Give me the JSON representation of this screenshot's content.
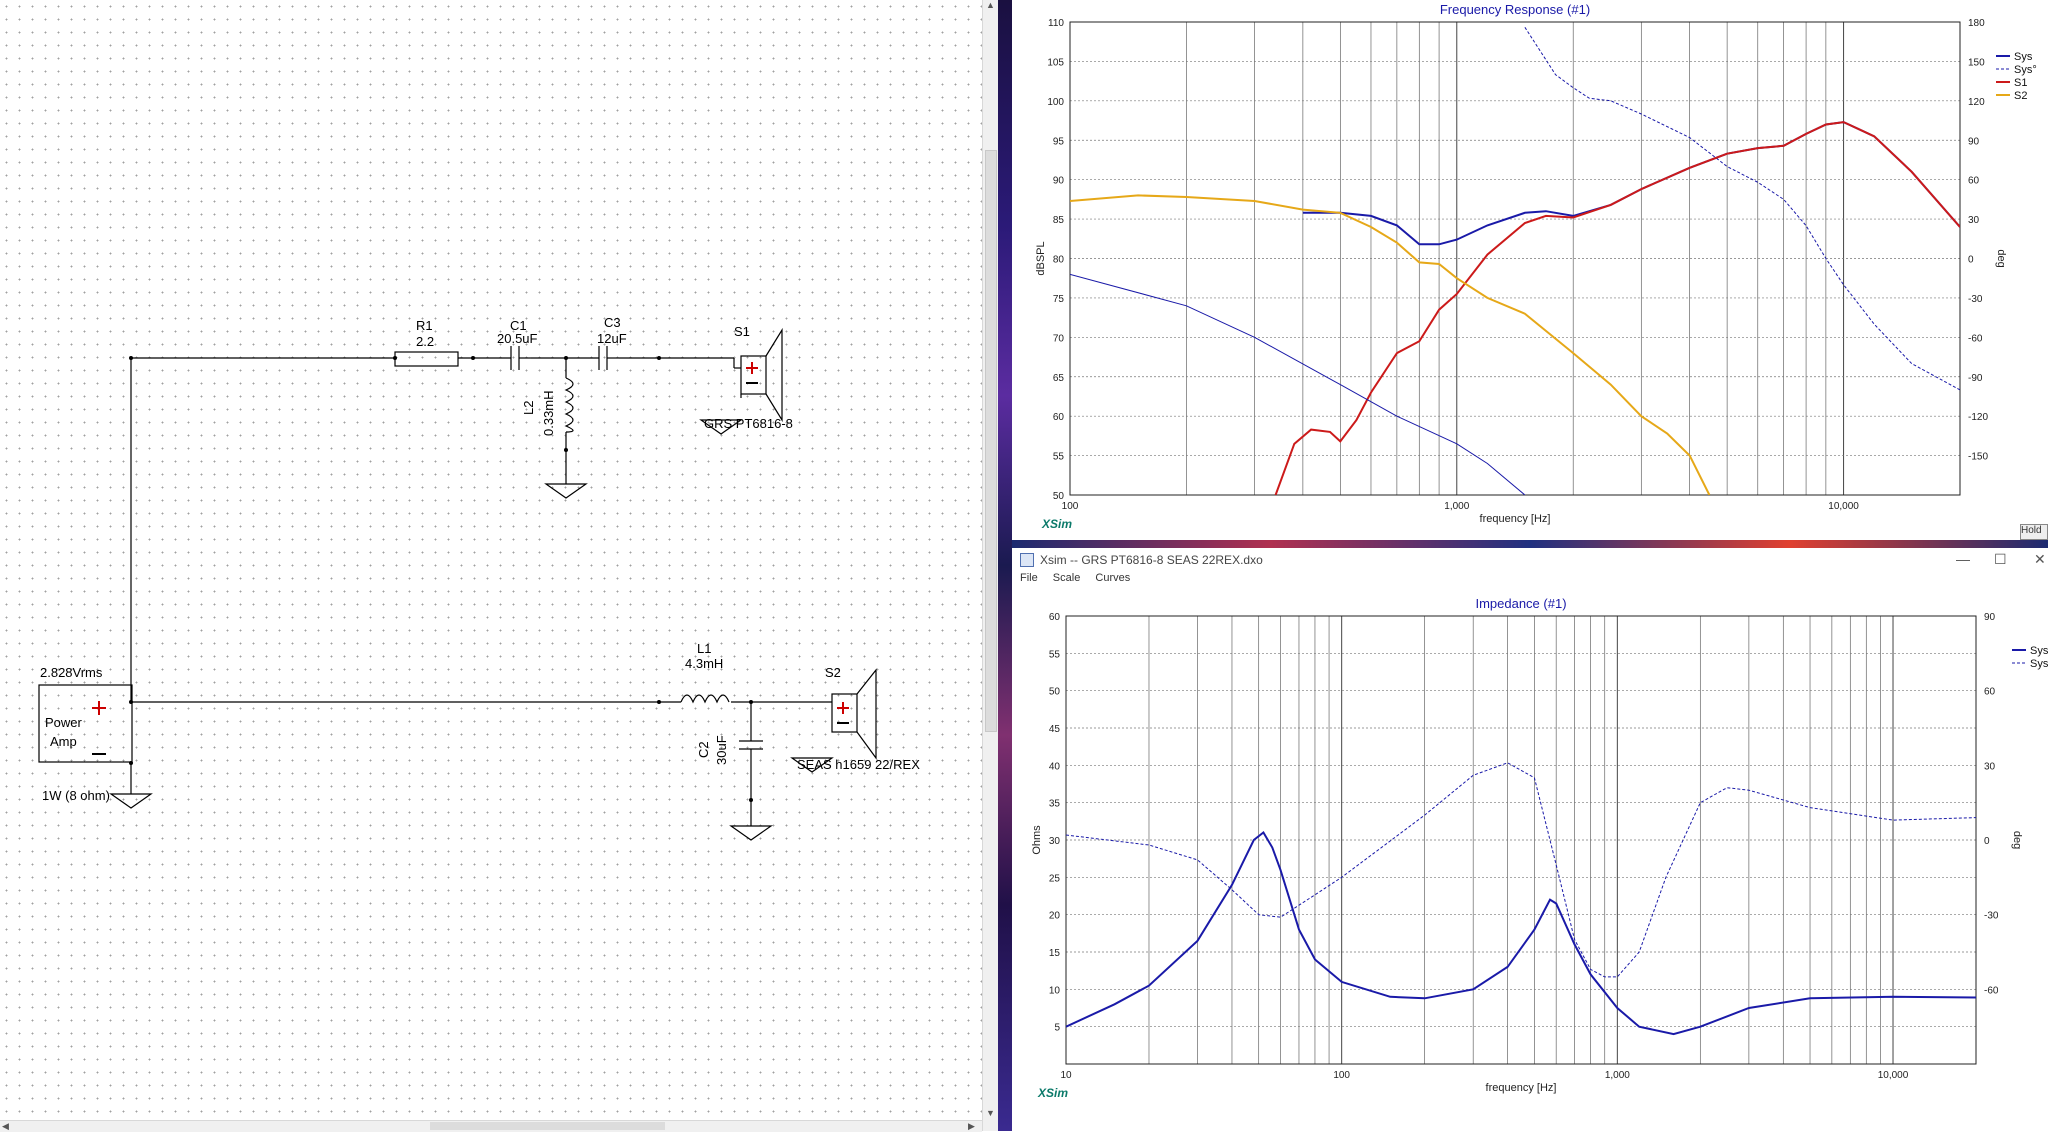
{
  "schematic": {
    "r1": {
      "name": "R1",
      "value": "2.2"
    },
    "c1": {
      "name": "C1",
      "value": "20.5uF"
    },
    "c3": {
      "name": "C3",
      "value": "12uF"
    },
    "l2": {
      "name": "L2",
      "value": "0.33mH"
    },
    "s1": {
      "name": "S1",
      "model": "GRS PT6816-8"
    },
    "l1": {
      "name": "L1",
      "value": "4.3mH"
    },
    "c2": {
      "name": "C2",
      "value": "30uF"
    },
    "s2": {
      "name": "S2",
      "model": "SEAS h1659 22/REX"
    },
    "amp": {
      "voltage": "2.828Vrms",
      "line1": "Power",
      "line2": "Amp",
      "power": "1W (8 ohm)"
    }
  },
  "freq_window": {
    "title": "Frequency Response (#1)",
    "logo": "XSim",
    "hold_label": "Hold",
    "chart_data": {
      "type": "line",
      "title": "Frequency Response (#1)",
      "xlabel": "frequency [Hz]",
      "ylabel": "dBSPL",
      "y2label": "deg",
      "xscale": "log",
      "xlim": [
        100,
        20000
      ],
      "ylim": [
        50,
        110
      ],
      "y2lim": [
        -180,
        180
      ],
      "x_tick_labels": [
        "100",
        "1,000",
        "10,000"
      ],
      "y_ticks": [
        50,
        55,
        60,
        65,
        70,
        75,
        80,
        85,
        90,
        95,
        100,
        105,
        110
      ],
      "y2_ticks": [
        -150,
        -120,
        -90,
        -60,
        -30,
        0,
        30,
        60,
        90,
        120,
        150,
        180
      ],
      "grid": true,
      "legend": "top-right",
      "series": [
        {
          "name": "Sys",
          "color": "#1a1aa8",
          "style": "solid",
          "axis": "left",
          "x": [
            400,
            500,
            600,
            700,
            800,
            900,
            1000,
            1200,
            1500,
            1700,
            2000,
            2500,
            3000,
            4000,
            5000,
            6000,
            7000,
            8000,
            9000,
            10000,
            12000,
            15000,
            20000
          ],
          "y": [
            85.8,
            85.8,
            85.4,
            84.2,
            81.8,
            81.8,
            82.4,
            84.2,
            85.8,
            86.0,
            85.4,
            86.8,
            88.8,
            91.5,
            93.3,
            94.0,
            94.3,
            95.8,
            97.0,
            97.3,
            95.5,
            91.0,
            84.0
          ]
        },
        {
          "name": "Sys°",
          "color": "#1a1aa8",
          "style": "dashed",
          "axis": "right",
          "x": [
            1500,
            1800,
            2000,
            2200,
            2500,
            3000,
            4000,
            5000,
            6000,
            7000,
            8000,
            9000,
            10000,
            12000,
            15000,
            20000
          ],
          "y": [
            176,
            140,
            130,
            122,
            120,
            110,
            92,
            70,
            58,
            45,
            25,
            0,
            -20,
            -50,
            -80,
            -100
          ]
        },
        {
          "name": "S1",
          "color": "#cc1a1a",
          "style": "solid",
          "axis": "left",
          "x": [
            340,
            380,
            420,
            470,
            500,
            550,
            600,
            700,
            800,
            900,
            1000,
            1200,
            1500,
            1700,
            2000,
            2500,
            3000,
            4000,
            5000,
            6000,
            7000,
            8000,
            9000,
            10000,
            12000,
            15000,
            20000
          ],
          "y": [
            50.0,
            56.5,
            58.3,
            58.0,
            56.8,
            59.5,
            63.0,
            68.0,
            69.5,
            73.5,
            75.5,
            80.5,
            84.5,
            85.4,
            85.2,
            86.8,
            88.8,
            91.5,
            93.3,
            94.0,
            94.3,
            95.8,
            97.0,
            97.3,
            95.5,
            91.0,
            84.0
          ]
        },
        {
          "name": "S2",
          "color": "#e6a818",
          "style": "solid",
          "axis": "left",
          "x": [
            100,
            150,
            200,
            300,
            400,
            500,
            600,
            700,
            800,
            900,
            1000,
            1200,
            1500,
            2000,
            2500,
            3000,
            3500,
            4000,
            4500
          ],
          "y": [
            87.3,
            88.0,
            87.8,
            87.3,
            86.2,
            85.8,
            84.0,
            82.0,
            79.5,
            79.3,
            77.5,
            75.0,
            73.0,
            68.0,
            64.0,
            60.0,
            57.8,
            55.0,
            50.0
          ]
        },
        {
          "name": "",
          "color": "#1a1aa8",
          "style": "thin",
          "axis": "left",
          "x": [
            100,
            200,
            300,
            500,
            700,
            1000,
            1200,
            1500
          ],
          "y": [
            78.0,
            74.0,
            70.0,
            64.0,
            60.0,
            56.5,
            54.0,
            50.0
          ]
        }
      ]
    }
  },
  "imp_window": {
    "window_title": "Xsim -- GRS PT6816-8 SEAS 22REX.dxo",
    "menus": [
      "File",
      "Scale",
      "Curves"
    ],
    "title": "Impedance (#1)",
    "logo": "XSim",
    "chart_data": {
      "type": "line",
      "title": "Impedance (#1)",
      "xlabel": "frequency [Hz]",
      "ylabel": "Ohms",
      "y2label": "deg",
      "xscale": "log",
      "xlim": [
        10,
        20000
      ],
      "ylim": [
        0,
        60
      ],
      "y2lim": [
        -90,
        90
      ],
      "x_tick_labels": [
        "10",
        "100",
        "1,000",
        "10,000"
      ],
      "y_ticks": [
        5,
        10,
        15,
        20,
        25,
        30,
        35,
        40,
        45,
        50,
        55,
        60
      ],
      "y2_ticks": [
        -60,
        -30,
        0,
        30,
        60,
        90
      ],
      "grid": true,
      "legend": "top-right",
      "series": [
        {
          "name": "Sys",
          "color": "#1a1aa8",
          "style": "solid",
          "axis": "left",
          "x": [
            10,
            15,
            20,
            30,
            40,
            48,
            52,
            56,
            60,
            70,
            80,
            100,
            150,
            200,
            300,
            400,
            500,
            570,
            600,
            700,
            800,
            1000,
            1200,
            1600,
            2000,
            3000,
            5000,
            10000,
            20000
          ],
          "y": [
            5.0,
            8.0,
            10.5,
            16.5,
            24.0,
            30.0,
            31.0,
            29.0,
            26.0,
            18.0,
            14.0,
            11.0,
            9.0,
            8.8,
            10.0,
            13.0,
            18.0,
            22.0,
            21.5,
            16.0,
            12.0,
            7.5,
            5.0,
            4.0,
            5.0,
            7.5,
            8.8,
            9.0,
            8.9
          ]
        },
        {
          "name": "Sys°",
          "color": "#1a1aa8",
          "style": "dashed",
          "axis": "right",
          "x": [
            10,
            20,
            30,
            40,
            50,
            60,
            80,
            100,
            200,
            300,
            400,
            500,
            600,
            700,
            800,
            900,
            1000,
            1200,
            1500,
            2000,
            2500,
            3000,
            5000,
            10000,
            20000
          ],
          "y": [
            2,
            -2,
            -8,
            -20,
            -30,
            -31,
            -22,
            -15,
            10,
            26,
            31,
            25,
            -10,
            -40,
            -52,
            -55,
            -55,
            -45,
            -15,
            15,
            21,
            20,
            13,
            8,
            9
          ]
        }
      ]
    }
  }
}
